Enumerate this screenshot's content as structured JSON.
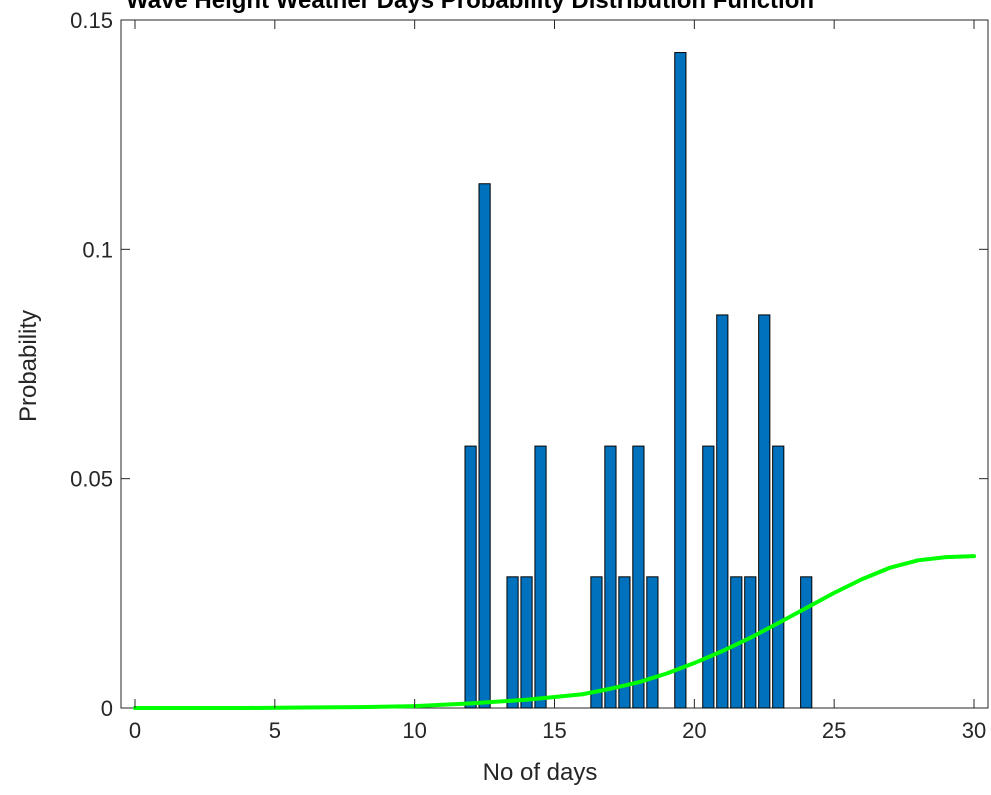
{
  "chart_data": {
    "type": "bar",
    "title": "Wave Height Weather Days Probability Distribution Function",
    "xlabel": "No of days",
    "ylabel": "Probability",
    "xlim": [
      -0.5,
      30.5
    ],
    "ylim": [
      0,
      0.15
    ],
    "xticks": [
      0,
      5,
      10,
      15,
      20,
      25,
      30
    ],
    "xtick_labels": [
      "0",
      "5",
      "10",
      "15",
      "20",
      "25",
      "30"
    ],
    "yticks": [
      0,
      0.05,
      0.1,
      0.15
    ],
    "ytick_labels": [
      "0",
      "0.05",
      "0.1",
      "0.15"
    ],
    "grid": false,
    "bar_color": "#0072BD",
    "curve_color": "#00FF00",
    "bars": {
      "x": [
        0,
        0.5,
        1,
        1.5,
        2,
        2.5,
        3,
        3.5,
        4,
        4.5,
        5,
        5.5,
        6,
        6.5,
        7,
        7.5,
        8,
        8.5,
        9,
        9.5,
        10,
        10.5,
        11,
        11.5,
        12,
        12.5,
        13,
        13.5,
        14,
        14.5,
        15,
        15.5,
        16,
        16.5,
        17,
        17.5,
        18,
        18.5,
        19,
        19.5,
        20,
        20.5,
        21,
        21.5,
        22,
        22.5,
        23,
        23.5,
        24,
        24.5,
        25,
        25.5,
        26,
        26.5,
        27,
        27.5,
        28,
        28.5,
        29,
        29.5,
        30
      ],
      "values": [
        0,
        0,
        0,
        0,
        0,
        0,
        0,
        0,
        0,
        0,
        0,
        0,
        0,
        0,
        0,
        0,
        0,
        0,
        0,
        0,
        0,
        0,
        0,
        0,
        0.0571,
        0.1143,
        0,
        0.0286,
        0.0286,
        0.0571,
        0,
        0,
        0,
        0.0286,
        0.0571,
        0.0286,
        0.0571,
        0.0286,
        0,
        0.1429,
        0,
        0.0571,
        0.0857,
        0.0286,
        0.0286,
        0.0857,
        0.0571,
        0,
        0.0286,
        0,
        0,
        0,
        0,
        0,
        0,
        0,
        0,
        0,
        0,
        0,
        0
      ]
    },
    "series": [
      {
        "type": "line",
        "x": [
          0,
          2,
          4,
          6,
          8,
          10,
          12,
          14,
          16,
          17,
          18,
          19,
          20,
          21,
          22,
          23,
          24,
          25,
          26,
          27,
          28,
          29,
          30
        ],
        "values": [
          0,
          0,
          0,
          0.0001,
          0.0002,
          0.0004,
          0.001,
          0.0018,
          0.003,
          0.0042,
          0.0056,
          0.0075,
          0.0098,
          0.0124,
          0.0153,
          0.0185,
          0.0218,
          0.0251,
          0.0281,
          0.0306,
          0.0322,
          0.0329,
          0.0331
        ]
      }
    ]
  }
}
